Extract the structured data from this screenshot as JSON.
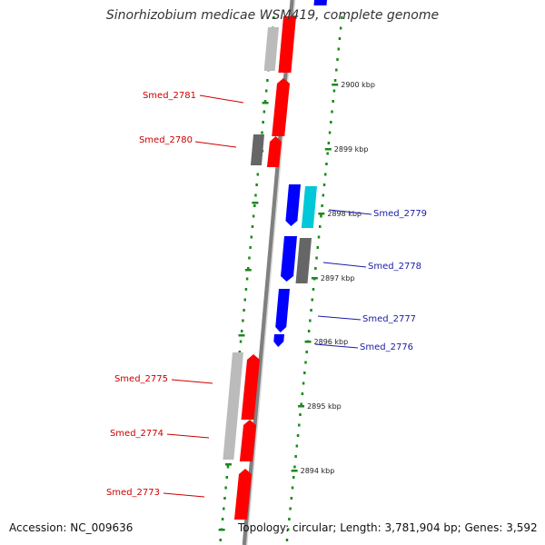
{
  "title": "Sinorhizobium medicae WSM419, complete genome",
  "accession": "Accession: NC_009636",
  "topology": "Topology: circular; Length: 3,781,904 bp; Genes: 3,592",
  "colors": {
    "forward": "#ff0000",
    "reverse": "#0000ff",
    "reverse_light": "#00c8d8",
    "gray_dark": "#666666",
    "gray_light": "#bbbbbb",
    "backbone": "#808080",
    "tick": "#1a8a1a",
    "forward_label": "#cc0000",
    "reverse_label": "#1a1aaa"
  },
  "scale_ticks": [
    {
      "kbp": 2900,
      "label": "2900 kbp"
    },
    {
      "kbp": 2899,
      "label": "2899 kbp"
    },
    {
      "kbp": 2898,
      "label": "2898 kbp"
    },
    {
      "kbp": 2897,
      "label": "2897 kbp"
    },
    {
      "kbp": 2896,
      "label": "2896 kbp"
    },
    {
      "kbp": 2895,
      "label": "2895 kbp"
    },
    {
      "kbp": 2894,
      "label": "2894 kbp"
    }
  ],
  "genes": [
    {
      "name": "Smed_2781",
      "strand": "forward"
    },
    {
      "name": "Smed_2780",
      "strand": "forward"
    },
    {
      "name": "Smed_2779",
      "strand": "reverse"
    },
    {
      "name": "Smed_2778",
      "strand": "reverse"
    },
    {
      "name": "Smed_2777",
      "strand": "reverse"
    },
    {
      "name": "Smed_2776",
      "strand": "reverse"
    },
    {
      "name": "Smed_2775",
      "strand": "forward"
    },
    {
      "name": "Smed_2774",
      "strand": "forward"
    },
    {
      "name": "Smed_2773",
      "strand": "forward"
    }
  ]
}
